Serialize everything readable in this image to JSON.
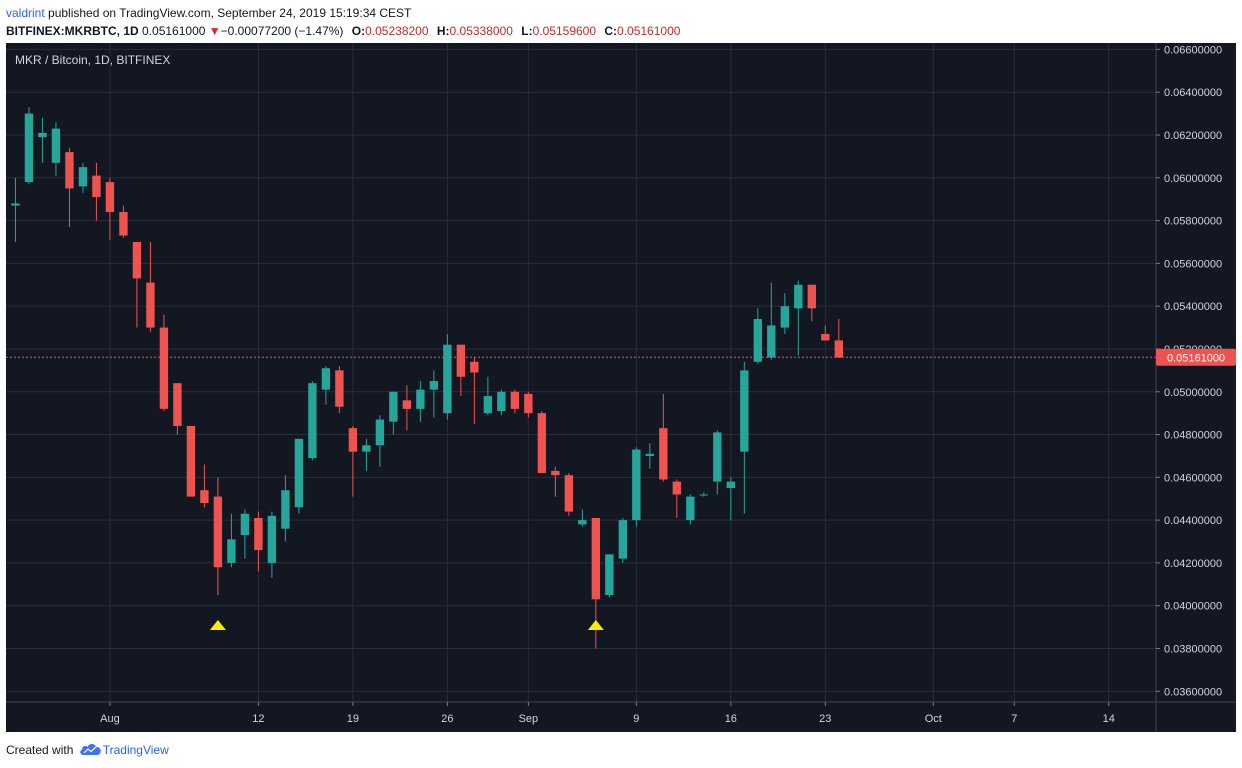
{
  "header": {
    "author": "valdrint",
    "published_text": "published on TradingView.com, September 24, 2019 15:19:34 CEST",
    "symbol": "BITFINEX:MKRBTC, 1D",
    "last": "0.05161000",
    "change_arrow": "▼",
    "change": "−0.00077200 (−1.47%)",
    "o_label": "O:",
    "o_value": "0.05238200",
    "h_label": "H:",
    "h_value": "0.05338000",
    "l_label": "L:",
    "l_value": "0.05159600",
    "c_label": "C:",
    "c_value": "0.05161000"
  },
  "footer": {
    "created_with": "Created with",
    "brand": "TradingView",
    "logo_icon": "tradingview-cloud-icon"
  },
  "colors": {
    "background": "#131722",
    "grid": "#2a2e39",
    "up": "#26a69a",
    "down": "#ef5350",
    "axis_text": "#d1d4dc",
    "marker": "#ffe90a",
    "price_line": "#ef5350"
  },
  "chart_data": {
    "type": "candlestick",
    "title": "MKR / Bitcoin, 1D, BITFINEX",
    "ylim": [
      0.0355,
      0.0663
    ],
    "y_ticks": [
      "0.03600000",
      "0.03800000",
      "0.04000000",
      "0.04200000",
      "0.04400000",
      "0.04600000",
      "0.04800000",
      "0.05000000",
      "0.05200000",
      "0.05400000",
      "0.05600000",
      "0.05800000",
      "0.06000000",
      "0.06200000",
      "0.06400000",
      "0.06600000"
    ],
    "x_ticks": [
      {
        "label": "Aug",
        "day": 7
      },
      {
        "label": "12",
        "day": 18
      },
      {
        "label": "19",
        "day": 25
      },
      {
        "label": "26",
        "day": 32
      },
      {
        "label": "Sep",
        "day": 38
      },
      {
        "label": "9",
        "day": 46
      },
      {
        "label": "16",
        "day": 53
      },
      {
        "label": "23",
        "day": 60
      },
      {
        "label": "Oct",
        "day": 68
      },
      {
        "label": "7",
        "day": 74
      },
      {
        "label": "14",
        "day": 81
      }
    ],
    "x_range": [
      -0.7,
      84.5
    ],
    "current_price": 0.05161,
    "current_price_label": "0.05161000",
    "markers": [
      {
        "day": 15,
        "price": 0.0391,
        "shape": "triangle-up"
      },
      {
        "day": 43,
        "price": 0.0391,
        "shape": "triangle-up"
      }
    ],
    "candles": [
      {
        "day": 0,
        "o": 0.0587,
        "h": 0.06,
        "l": 0.057,
        "c": 0.0588
      },
      {
        "day": 1,
        "o": 0.0598,
        "h": 0.0633,
        "l": 0.0597,
        "c": 0.063
      },
      {
        "day": 2,
        "o": 0.0619,
        "h": 0.0628,
        "l": 0.0607,
        "c": 0.0621
      },
      {
        "day": 3,
        "o": 0.0607,
        "h": 0.0626,
        "l": 0.0601,
        "c": 0.0623
      },
      {
        "day": 4,
        "o": 0.0612,
        "h": 0.0614,
        "l": 0.0577,
        "c": 0.0595
      },
      {
        "day": 5,
        "o": 0.0596,
        "h": 0.0607,
        "l": 0.0593,
        "c": 0.0605
      },
      {
        "day": 6,
        "o": 0.0601,
        "h": 0.0607,
        "l": 0.058,
        "c": 0.0591
      },
      {
        "day": 7,
        "o": 0.0598,
        "h": 0.06,
        "l": 0.0571,
        "c": 0.0584
      },
      {
        "day": 8,
        "o": 0.0584,
        "h": 0.0587,
        "l": 0.0572,
        "c": 0.0573
      },
      {
        "day": 9,
        "o": 0.057,
        "h": 0.057,
        "l": 0.053,
        "c": 0.0553
      },
      {
        "day": 10,
        "o": 0.0551,
        "h": 0.057,
        "l": 0.0528,
        "c": 0.053
      },
      {
        "day": 11,
        "o": 0.053,
        "h": 0.0536,
        "l": 0.0491,
        "c": 0.0492
      },
      {
        "day": 12,
        "o": 0.0504,
        "h": 0.0504,
        "l": 0.048,
        "c": 0.0484
      },
      {
        "day": 13,
        "o": 0.0484,
        "h": 0.0484,
        "l": 0.0451,
        "c": 0.0451
      },
      {
        "day": 14,
        "o": 0.0454,
        "h": 0.0466,
        "l": 0.0446,
        "c": 0.0448
      },
      {
        "day": 15,
        "o": 0.0451,
        "h": 0.046,
        "l": 0.0405,
        "c": 0.0418
      },
      {
        "day": 16,
        "o": 0.042,
        "h": 0.0443,
        "l": 0.0418,
        "c": 0.0431
      },
      {
        "day": 17,
        "o": 0.0433,
        "h": 0.0445,
        "l": 0.0422,
        "c": 0.0443
      },
      {
        "day": 18,
        "o": 0.0441,
        "h": 0.0444,
        "l": 0.0416,
        "c": 0.0426
      },
      {
        "day": 19,
        "o": 0.042,
        "h": 0.0444,
        "l": 0.0413,
        "c": 0.0442
      },
      {
        "day": 20,
        "o": 0.0436,
        "h": 0.0461,
        "l": 0.043,
        "c": 0.0454
      },
      {
        "day": 21,
        "o": 0.0446,
        "h": 0.0478,
        "l": 0.0443,
        "c": 0.0478
      },
      {
        "day": 22,
        "o": 0.0469,
        "h": 0.0505,
        "l": 0.0468,
        "c": 0.0504
      },
      {
        "day": 23,
        "o": 0.0501,
        "h": 0.0512,
        "l": 0.0494,
        "c": 0.0511
      },
      {
        "day": 24,
        "o": 0.051,
        "h": 0.0512,
        "l": 0.049,
        "c": 0.0493
      },
      {
        "day": 25,
        "o": 0.0483,
        "h": 0.0484,
        "l": 0.0451,
        "c": 0.0472
      },
      {
        "day": 26,
        "o": 0.0472,
        "h": 0.0478,
        "l": 0.0463,
        "c": 0.0475
      },
      {
        "day": 27,
        "o": 0.0475,
        "h": 0.0489,
        "l": 0.0465,
        "c": 0.0487
      },
      {
        "day": 28,
        "o": 0.0486,
        "h": 0.05,
        "l": 0.048,
        "c": 0.05
      },
      {
        "day": 29,
        "o": 0.0496,
        "h": 0.0503,
        "l": 0.0482,
        "c": 0.0492
      },
      {
        "day": 30,
        "o": 0.0492,
        "h": 0.0505,
        "l": 0.0486,
        "c": 0.0501
      },
      {
        "day": 31,
        "o": 0.0501,
        "h": 0.051,
        "l": 0.0488,
        "c": 0.0505
      },
      {
        "day": 32,
        "o": 0.049,
        "h": 0.0527,
        "l": 0.0487,
        "c": 0.0522
      },
      {
        "day": 33,
        "o": 0.0522,
        "h": 0.0522,
        "l": 0.0498,
        "c": 0.0507
      },
      {
        "day": 34,
        "o": 0.0514,
        "h": 0.0516,
        "l": 0.0485,
        "c": 0.0509
      },
      {
        "day": 35,
        "o": 0.049,
        "h": 0.0507,
        "l": 0.0489,
        "c": 0.0498
      },
      {
        "day": 36,
        "o": 0.0491,
        "h": 0.0501,
        "l": 0.0489,
        "c": 0.05
      },
      {
        "day": 37,
        "o": 0.05,
        "h": 0.0501,
        "l": 0.049,
        "c": 0.0492
      },
      {
        "day": 38,
        "o": 0.0499,
        "h": 0.05,
        "l": 0.0488,
        "c": 0.049
      },
      {
        "day": 39,
        "o": 0.049,
        "h": 0.0491,
        "l": 0.0462,
        "c": 0.0462
      },
      {
        "day": 40,
        "o": 0.0463,
        "h": 0.0465,
        "l": 0.0451,
        "c": 0.0461
      },
      {
        "day": 41,
        "o": 0.0461,
        "h": 0.0462,
        "l": 0.0442,
        "c": 0.0444
      },
      {
        "day": 42,
        "o": 0.0438,
        "h": 0.0445,
        "l": 0.0437,
        "c": 0.044
      },
      {
        "day": 43,
        "o": 0.0441,
        "h": 0.0441,
        "l": 0.038,
        "c": 0.0403
      },
      {
        "day": 44,
        "o": 0.0405,
        "h": 0.0424,
        "l": 0.0404,
        "c": 0.0424
      },
      {
        "day": 45,
        "o": 0.0422,
        "h": 0.0441,
        "l": 0.042,
        "c": 0.044
      },
      {
        "day": 46,
        "o": 0.044,
        "h": 0.0474,
        "l": 0.0437,
        "c": 0.0473
      },
      {
        "day": 47,
        "o": 0.047,
        "h": 0.0476,
        "l": 0.0464,
        "c": 0.0471
      },
      {
        "day": 48,
        "o": 0.0483,
        "h": 0.0499,
        "l": 0.0458,
        "c": 0.0459
      },
      {
        "day": 49,
        "o": 0.0458,
        "h": 0.0459,
        "l": 0.0441,
        "c": 0.0452
      },
      {
        "day": 50,
        "o": 0.044,
        "h": 0.0452,
        "l": 0.0438,
        "c": 0.0451
      },
      {
        "day": 51,
        "o": 0.0452,
        "h": 0.0453,
        "l": 0.0451,
        "c": 0.0452
      },
      {
        "day": 52,
        "o": 0.0458,
        "h": 0.0482,
        "l": 0.0452,
        "c": 0.0481
      },
      {
        "day": 53,
        "o": 0.0455,
        "h": 0.046,
        "l": 0.044,
        "c": 0.0458
      },
      {
        "day": 54,
        "o": 0.0472,
        "h": 0.0514,
        "l": 0.0443,
        "c": 0.051
      },
      {
        "day": 55,
        "o": 0.0514,
        "h": 0.0539,
        "l": 0.0513,
        "c": 0.0534
      },
      {
        "day": 56,
        "o": 0.0516,
        "h": 0.0551,
        "l": 0.0515,
        "c": 0.0531
      },
      {
        "day": 57,
        "o": 0.053,
        "h": 0.0546,
        "l": 0.0527,
        "c": 0.054
      },
      {
        "day": 58,
        "o": 0.0539,
        "h": 0.0552,
        "l": 0.0517,
        "c": 0.055
      },
      {
        "day": 59,
        "o": 0.055,
        "h": 0.055,
        "l": 0.0533,
        "c": 0.0539
      },
      {
        "day": 60,
        "o": 0.0527,
        "h": 0.0531,
        "l": 0.0524,
        "c": 0.0524
      },
      {
        "day": 61,
        "o": 0.0524,
        "h": 0.0534,
        "l": 0.0516,
        "c": 0.0516
      }
    ]
  }
}
